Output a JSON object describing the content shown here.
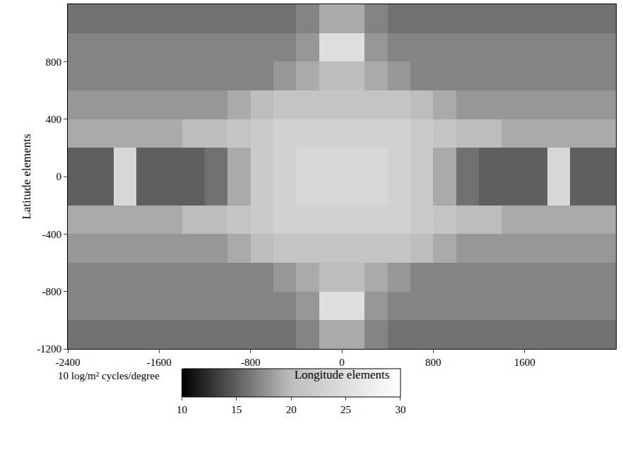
{
  "chart_data": {
    "type": "heatmap",
    "xlabel": "Longitude elements",
    "ylabel": "Latitude elements",
    "xlim": [
      -2400,
      2400
    ],
    "ylim": [
      -1200,
      1200
    ],
    "xticks": [
      -2400,
      -1600,
      -800,
      0,
      800,
      1600
    ],
    "yticks": [
      -1200,
      -800,
      -400,
      0,
      400,
      800
    ],
    "grid": true,
    "x": [
      -2300,
      -2100,
      -1900,
      -1700,
      -1500,
      -1300,
      -1100,
      -900,
      -700,
      -500,
      -300,
      -100,
      100,
      300,
      500,
      700,
      900,
      1100,
      1300,
      1500,
      1700,
      1900,
      2100,
      2300
    ],
    "y": [
      -1100,
      -900,
      -700,
      -500,
      -300,
      -100,
      100,
      300,
      500,
      700,
      900,
      1100
    ],
    "z": [
      [
        16,
        16,
        16,
        16,
        16,
        16,
        16,
        16,
        16,
        16,
        17,
        19,
        19,
        17,
        16,
        16,
        16,
        16,
        16,
        16,
        16,
        16,
        16,
        16
      ],
      [
        17,
        17,
        17,
        17,
        17,
        17,
        17,
        17,
        17,
        17,
        18,
        25,
        25,
        18,
        17,
        17,
        17,
        17,
        17,
        17,
        17,
        17,
        17,
        17
      ],
      [
        17,
        17,
        17,
        17,
        17,
        17,
        17,
        17,
        17,
        18,
        19,
        20,
        20,
        19,
        18,
        17,
        17,
        17,
        17,
        17,
        17,
        17,
        17,
        17
      ],
      [
        18,
        18,
        18,
        18,
        18,
        18,
        18,
        19,
        20,
        21,
        21,
        21,
        21,
        21,
        21,
        20,
        19,
        18,
        18,
        18,
        18,
        18,
        18,
        18
      ],
      [
        19,
        19,
        19,
        19,
        19,
        20,
        20,
        21,
        22,
        23,
        23,
        23,
        23,
        23,
        23,
        22,
        21,
        20,
        20,
        19,
        19,
        19,
        19,
        19
      ],
      [
        15,
        15,
        24,
        15,
        15,
        15,
        16,
        19,
        22,
        23,
        24,
        24,
        24,
        24,
        23,
        22,
        19,
        16,
        15,
        15,
        15,
        24,
        15,
        15
      ],
      [
        15,
        15,
        24,
        15,
        15,
        15,
        16,
        19,
        22,
        23,
        24,
        24,
        24,
        24,
        23,
        22,
        19,
        16,
        15,
        15,
        15,
        24,
        15,
        15
      ],
      [
        19,
        19,
        19,
        19,
        19,
        20,
        20,
        21,
        22,
        23,
        23,
        23,
        23,
        23,
        23,
        22,
        21,
        20,
        20,
        19,
        19,
        19,
        19,
        19
      ],
      [
        18,
        18,
        18,
        18,
        18,
        18,
        18,
        19,
        20,
        21,
        21,
        21,
        21,
        21,
        21,
        20,
        19,
        18,
        18,
        18,
        18,
        18,
        18,
        18
      ],
      [
        17,
        17,
        17,
        17,
        17,
        17,
        17,
        17,
        17,
        18,
        19,
        20,
        20,
        19,
        18,
        17,
        17,
        17,
        17,
        17,
        17,
        17,
        17,
        17
      ],
      [
        17,
        17,
        17,
        17,
        17,
        17,
        17,
        17,
        17,
        17,
        18,
        25,
        25,
        18,
        17,
        17,
        17,
        17,
        17,
        17,
        17,
        17,
        17,
        17
      ],
      [
        16,
        16,
        16,
        16,
        16,
        16,
        16,
        16,
        16,
        16,
        17,
        19,
        19,
        17,
        16,
        16,
        16,
        16,
        16,
        16,
        16,
        16,
        16,
        16
      ]
    ],
    "colorbar": {
      "title": "10 log/m² cycles/degree",
      "range": [
        10,
        30
      ],
      "ticks": [
        10,
        15,
        20,
        25,
        30
      ]
    }
  }
}
